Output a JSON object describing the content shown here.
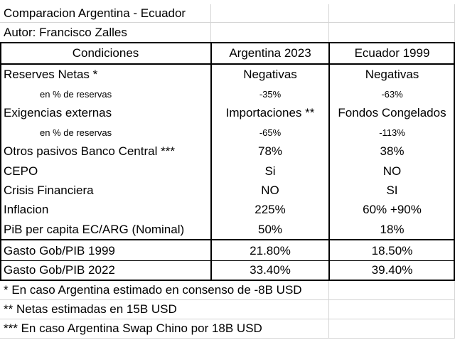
{
  "header": {
    "title": "Comparacion Argentina - Ecuador",
    "author": "Autor: Francisco Zalles"
  },
  "table": {
    "columns": [
      "Condiciones",
      "Argentina 2023",
      "Ecuador 1999"
    ],
    "rows": [
      {
        "label": "Reserves Netas *",
        "arg": "Negativas",
        "ecu": "Negativas"
      },
      {
        "label": "en % de reservas",
        "arg": "-35%",
        "ecu": "-63%"
      },
      {
        "label": "Exigencias externas",
        "arg": "Importaciones **",
        "ecu": "Fondos Congelados"
      },
      {
        "label": "en % de reservas",
        "arg": "-65%",
        "ecu": "-113%"
      },
      {
        "label": "Otros pasivos Banco Central ***",
        "arg": "78%",
        "ecu": "38%"
      },
      {
        "label": "CEPO",
        "arg": "Si",
        "ecu": "NO"
      },
      {
        "label": "Crisis Financiera",
        "arg": "NO",
        "ecu": "SI"
      },
      {
        "label": "Inflacion",
        "arg": "225%",
        "ecu": "60% +90%"
      },
      {
        "label": "PiB per capita EC/ARG (Nominal)",
        "arg": "50%",
        "ecu": "18%"
      }
    ],
    "gasto_rows": [
      {
        "label": "Gasto Gob/PIB 1999",
        "arg": "21.80%",
        "ecu": "18.50%"
      },
      {
        "label": "Gasto Gob/PIB 2022",
        "arg": "33.40%",
        "ecu": "39.40%"
      }
    ]
  },
  "notes": [
    "* En caso Argentina estimado en consenso de -8B USD",
    "** Netas estimadas en 15B USD",
    "***  En caso Argentina Swap Chino por 18B USD"
  ]
}
